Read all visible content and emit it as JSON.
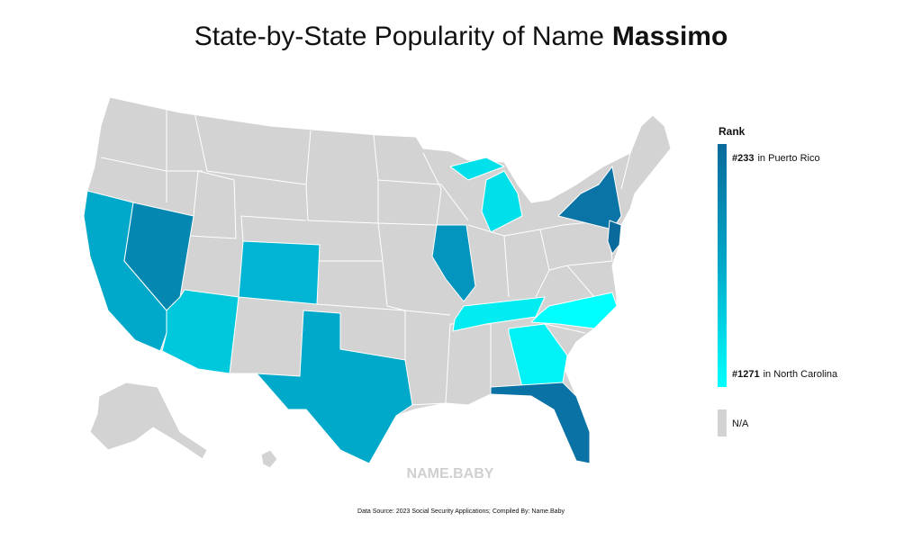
{
  "title": {
    "prefix": "State-by-State Popularity of Name",
    "name": "Massimo"
  },
  "legend": {
    "heading": "Rank",
    "top": {
      "rank": "#233",
      "place": "in Puerto Rico"
    },
    "bottom": {
      "rank": "#1271",
      "place": "in North Carolina"
    },
    "na": "N/A"
  },
  "watermark": "NAME.BABY",
  "footer": "Data Source: 2023 Social Security Applications; Compiled By: Name.Baby"
}
